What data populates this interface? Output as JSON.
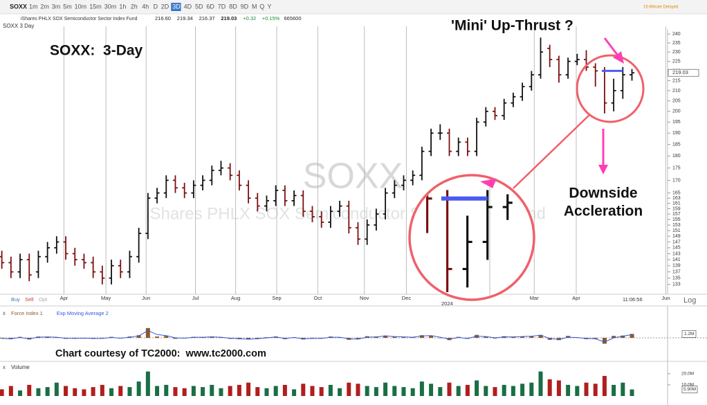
{
  "toolbar": {
    "symbol": "SOXX",
    "intervals": [
      "1m",
      "2m",
      "3m",
      "5m",
      "10m",
      "15m",
      "30m",
      "1h",
      "2h",
      "4h",
      "D",
      "2D",
      "3D",
      "4D",
      "5D",
      "6D",
      "7D",
      "8D",
      "9D",
      "M",
      "Q",
      "Y"
    ],
    "active": 12
  },
  "quote": {
    "name": "iShares PHLX SOX Semiconductor Sector Index Fund",
    "fields": [
      "216.60",
      "219.34",
      "216.37",
      "219.03",
      "+0.32",
      "+0.15%",
      "665600"
    ]
  },
  "delay_note": "15-Minute Delayed",
  "chart_data": [
    {
      "type": "ohlc",
      "title": "SOXX 3 Day",
      "watermark": "SOXX",
      "watermark_name": "iShares PHLX SOX Semiconductor Sector Index Fund",
      "annotations": [
        "SOXX:  3-Day",
        "'Mini' Up-Thrust ?",
        "Downside",
        "Accleration",
        "Chart courtesy of TC2000:  www.tc2000.com"
      ],
      "buttons": [
        "Buy",
        "Sell",
        "Opt"
      ],
      "time_label": "11:06:56",
      "scale_label": "Log",
      "year_label": "2024",
      "last_label": "219.03",
      "log": true,
      "grid": true,
      "up_color": "#111111",
      "down_color": "#7a1010",
      "hline": {
        "value": 220,
        "color": "#4a5cf0"
      },
      "xlim": [
        -0.2,
        72.9
      ],
      "xticks": [
        {
          "value": 6.8,
          "label": "Apr"
        },
        {
          "value": 11.4,
          "label": "May"
        },
        {
          "value": 15.8,
          "label": "Jun"
        },
        {
          "value": 21.2,
          "label": "Jul"
        },
        {
          "value": 25.6,
          "label": "Aug"
        },
        {
          "value": 30.1,
          "label": "Sep"
        },
        {
          "value": 34.6,
          "label": "Oct"
        },
        {
          "value": 39.7,
          "label": "Nov"
        },
        {
          "value": 44.3,
          "label": "Dec"
        },
        {
          "value": 58.3,
          "label": "Mar"
        },
        {
          "value": 62.9,
          "label": "Apr"
        },
        {
          "value": 72.7,
          "label": "Jun"
        }
      ],
      "ylim": [
        130.6,
        242.8
      ],
      "yticks": [
        240,
        235,
        230,
        225,
        220,
        215,
        210,
        205,
        200,
        195,
        190,
        185,
        180,
        175,
        170,
        165,
        163,
        161,
        159,
        157,
        155,
        153,
        151,
        149,
        147,
        145,
        143,
        141,
        139,
        137,
        135,
        133
      ],
      "open": [
        142,
        140,
        137,
        141,
        137,
        142,
        145,
        147,
        143,
        141,
        140,
        137,
        135,
        139,
        137,
        142,
        150,
        163,
        165,
        170,
        167,
        165,
        168,
        170,
        174,
        175,
        172,
        168,
        163,
        160,
        162,
        166,
        162,
        164,
        158,
        156,
        154,
        158,
        160,
        152,
        148,
        153,
        157,
        165,
        168,
        170,
        172,
        182,
        190,
        190,
        182,
        186,
        182,
        195,
        200,
        198,
        204,
        207,
        212,
        218,
        232,
        226,
        218,
        225,
        226,
        222,
        220,
        204,
        210,
        218
      ],
      "high": [
        144,
        142,
        143,
        143,
        144,
        147,
        149,
        149,
        145,
        143,
        142,
        139,
        141,
        141,
        144,
        152,
        165,
        167,
        172,
        172,
        169,
        170,
        172,
        176,
        178,
        177,
        174,
        170,
        165,
        164,
        168,
        168,
        166,
        166,
        160,
        158,
        160,
        162,
        162,
        154,
        155,
        159,
        167,
        170,
        172,
        174,
        184,
        192,
        194,
        192,
        188,
        188,
        197,
        202,
        202,
        206,
        209,
        214,
        220,
        238,
        234,
        228,
        227,
        229,
        231,
        224,
        222,
        216,
        222,
        221
      ],
      "low": [
        138,
        135,
        135,
        134,
        135,
        140,
        143,
        141,
        139,
        138,
        135,
        133,
        133,
        135,
        135,
        140,
        148,
        161,
        163,
        165,
        163,
        163,
        166,
        168,
        172,
        170,
        166,
        161,
        158,
        158,
        160,
        160,
        160,
        156,
        154,
        152,
        152,
        156,
        150,
        146,
        146,
        151,
        155,
        163,
        166,
        168,
        170,
        180,
        187,
        180,
        180,
        180,
        180,
        193,
        196,
        196,
        202,
        205,
        210,
        216,
        222,
        214,
        216,
        223,
        220,
        212,
        199,
        200,
        206,
        215
      ],
      "close": [
        140,
        137,
        141,
        136,
        142,
        145,
        147,
        143,
        141,
        140,
        137,
        135,
        139,
        137,
        142,
        150,
        163,
        165,
        170,
        167,
        165,
        168,
        170,
        174,
        175,
        172,
        168,
        163,
        160,
        162,
        166,
        162,
        164,
        158,
        156,
        154,
        158,
        160,
        152,
        148,
        153,
        157,
        165,
        168,
        170,
        172,
        182,
        190,
        190,
        182,
        186,
        182,
        195,
        200,
        198,
        204,
        207,
        212,
        218,
        230,
        226,
        218,
        225,
        226,
        222,
        220,
        204,
        210,
        218,
        219
      ]
    },
    {
      "type": "force",
      "last_label": "1.2M",
      "ylim": [
        -7000000,
        7000000
      ],
      "series": [
        {
          "name": "Force Index 1",
          "color": "#8b5a2b",
          "values": [
            -200000,
            -400000,
            300000,
            -500000,
            400000,
            300000,
            200000,
            -300000,
            -200000,
            -100000,
            -300000,
            -200000,
            300000,
            -200000,
            400000,
            800000,
            3000000,
            400000,
            600000,
            -300000,
            -200000,
            300000,
            200000,
            400000,
            100000,
            -300000,
            -400000,
            -500000,
            -300000,
            200000,
            400000,
            -400000,
            200000,
            -500000,
            -200000,
            -200000,
            400000,
            200000,
            -600000,
            -400000,
            500000,
            400000,
            700000,
            300000,
            200000,
            200000,
            800000,
            700000,
            0,
            -700000,
            300000,
            -300000,
            900000,
            400000,
            -200000,
            500000,
            300000,
            400000,
            500000,
            900000,
            -600000,
            -700000,
            600000,
            100000,
            -400000,
            -300000,
            -1800000,
            600000,
            700000,
            1200000
          ]
        },
        {
          "name": "Exp Moving Average 2",
          "color": "#3355dd",
          "values": [
            -200000,
            -300000,
            100000,
            -300000,
            200000,
            300000,
            200000,
            -100000,
            -200000,
            -100000,
            -200000,
            -200000,
            100000,
            -100000,
            200000,
            600000,
            2200000,
            1000000,
            700000,
            0,
            -100000,
            200000,
            200000,
            300000,
            200000,
            -100000,
            -300000,
            -400000,
            -300000,
            0,
            300000,
            -200000,
            100000,
            -300000,
            -200000,
            -200000,
            200000,
            200000,
            -300000,
            -400000,
            200000,
            300000,
            600000,
            400000,
            300000,
            200000,
            600000,
            700000,
            200000,
            -400000,
            100000,
            -200000,
            500000,
            400000,
            0,
            300000,
            300000,
            400000,
            500000,
            800000,
            -200000,
            -500000,
            200000,
            100000,
            -200000,
            -300000,
            -1300000,
            0,
            500000,
            1000000
          ]
        }
      ]
    },
    {
      "type": "volume",
      "title": "Volume",
      "last_label": "5.90M",
      "up_color": "#1a6e45",
      "down_color": "#b01e1e",
      "ylim": [
        0,
        23000000
      ],
      "yticks": [
        {
          "value": 20000000,
          "label": "20.0M"
        },
        {
          "value": 10000000,
          "label": "10.0M"
        }
      ],
      "values": [
        6000000,
        9000000,
        5000000,
        10000000,
        7000000,
        8000000,
        12000000,
        9000000,
        7000000,
        6000000,
        8000000,
        10000000,
        7000000,
        9000000,
        8000000,
        13000000,
        22000000,
        9000000,
        10000000,
        8000000,
        7000000,
        9000000,
        8000000,
        10000000,
        7000000,
        9000000,
        10000000,
        12000000,
        8000000,
        7000000,
        9000000,
        10000000,
        6000000,
        11000000,
        9000000,
        8000000,
        10000000,
        7000000,
        12000000,
        11000000,
        9000000,
        8000000,
        12000000,
        9000000,
        8000000,
        7000000,
        13000000,
        11000000,
        8000000,
        12000000,
        9000000,
        10000000,
        14000000,
        9000000,
        8000000,
        10000000,
        9000000,
        11000000,
        12000000,
        22000000,
        15000000,
        14000000,
        10000000,
        9000000,
        12000000,
        11000000,
        18000000,
        10000000,
        12000000,
        5900000
      ]
    }
  ]
}
